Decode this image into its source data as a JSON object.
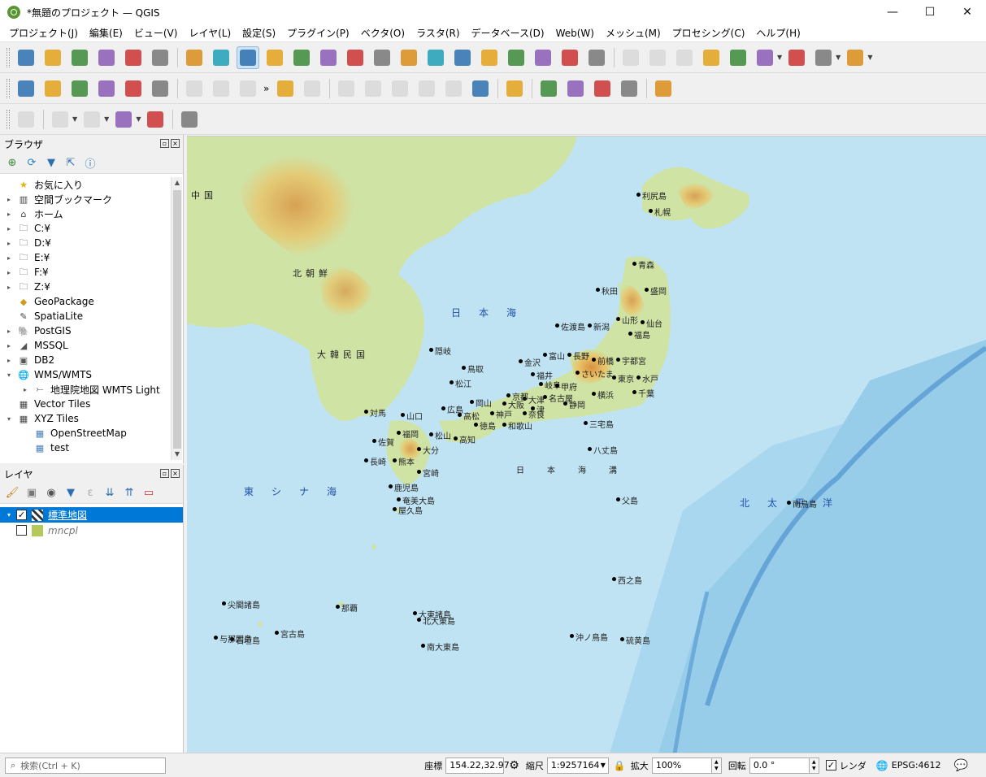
{
  "window": {
    "title": "*無題のプロジェクト — QGIS",
    "minimize": "—",
    "maximize": "☐",
    "close": "✕"
  },
  "menu": [
    "プロジェクト(J)",
    "編集(E)",
    "ビュー(V)",
    "レイヤ(L)",
    "設定(S)",
    "プラグイン(P)",
    "ベクタ(O)",
    "ラスタ(R)",
    "データベース(D)",
    "Web(W)",
    "メッシュ(M)",
    "プロセシング(C)",
    "ヘルプ(H)"
  ],
  "toolbar_icons": {
    "row1": [
      "new-project-icon",
      "open-project-icon",
      "save-project-icon",
      "print-layout-icon",
      "layout-manager-icon",
      "style-manager-icon",
      "pan-icon",
      "pan-to-selection-icon",
      "zoom-in-icon",
      "zoom-out-icon",
      "zoom-full-icon",
      "zoom-selection-icon",
      "zoom-layer-icon",
      "zoom-native-icon",
      "zoom-last-icon",
      "zoom-next-icon",
      "new-map-view-icon",
      "new-3d-view-icon",
      "bookmark-new-icon",
      "bookmarks-icon",
      "temporal-icon",
      "refresh-icon",
      "identify-icon",
      "attribute-table-icon",
      "field-calculator-icon",
      "processing-toolbox-icon",
      "statistics-icon",
      "measure-icon",
      "map-tips-icon",
      "locate-icon",
      "text-annotation-icon"
    ],
    "row2": [
      "data-source-manager-icon",
      "new-geopackage-icon",
      "new-shapefile-icon",
      "new-spatialite-icon",
      "new-virtual-layer-icon",
      "new-memory-layer-icon",
      "edits-icon",
      "toggle-editing-icon",
      "save-edits-icon",
      "digitize-icon",
      "vertex-tool-icon",
      "label-icon",
      "label-pin-icon",
      "label-show-icon",
      "label-move-icon",
      "label-rotate-icon",
      "label-change-icon",
      "metasearch-icon",
      "python-icon",
      "qms-icon",
      "osm-icon",
      "wkt-icon",
      "help-icon"
    ],
    "row3": [
      "select-feature-icon",
      "select-by-area-icon",
      "select-value-icon",
      "deselect-icon",
      "select-location-icon",
      "gis-plugin-icon"
    ]
  },
  "browser": {
    "title": "ブラウザ",
    "items": [
      {
        "label": "お気に入り",
        "icon": "favorites-icon",
        "arrow": ""
      },
      {
        "label": "空間ブックマーク",
        "icon": "bookmark-icon",
        "arrow": "▸"
      },
      {
        "label": "ホーム",
        "icon": "home-icon",
        "arrow": "▸"
      },
      {
        "label": "C:¥",
        "icon": "folder-icon",
        "arrow": "▸"
      },
      {
        "label": "D:¥",
        "icon": "folder-icon",
        "arrow": "▸"
      },
      {
        "label": "E:¥",
        "icon": "folder-icon",
        "arrow": "▸"
      },
      {
        "label": "F:¥",
        "icon": "folder-icon",
        "arrow": "▸"
      },
      {
        "label": "Z:¥",
        "icon": "folder-icon",
        "arrow": "▸"
      },
      {
        "label": "GeoPackage",
        "icon": "geopackage-icon",
        "arrow": ""
      },
      {
        "label": "SpatiaLite",
        "icon": "spatialite-icon",
        "arrow": ""
      },
      {
        "label": "PostGIS",
        "icon": "postgis-icon",
        "arrow": "▸"
      },
      {
        "label": "MSSQL",
        "icon": "mssql-icon",
        "arrow": "▸"
      },
      {
        "label": "DB2",
        "icon": "db2-icon",
        "arrow": "▸"
      },
      {
        "label": "WMS/WMTS",
        "icon": "wms-icon",
        "arrow": "▾"
      },
      {
        "label": "地理院地図 WMTS Light",
        "icon": "wmts-layer-icon",
        "arrow": "▸",
        "indent": 1
      },
      {
        "label": "Vector Tiles",
        "icon": "vector-tiles-icon",
        "arrow": ""
      },
      {
        "label": "XYZ Tiles",
        "icon": "xyz-tiles-icon",
        "arrow": "▾"
      },
      {
        "label": "OpenStreetMap",
        "icon": "xyz-tile-layer-icon",
        "arrow": "",
        "indent": 1
      },
      {
        "label": "test",
        "icon": "xyz-tile-layer-icon",
        "arrow": "",
        "indent": 1
      }
    ]
  },
  "layers": {
    "title": "レイヤ",
    "items": [
      {
        "label": "標準地図",
        "checked": true,
        "selected": true
      },
      {
        "label": "mncpl",
        "checked": false,
        "selected": false
      }
    ]
  },
  "map": {
    "seas": [
      {
        "label": "日本海"
      },
      {
        "label": "東シナ海"
      },
      {
        "label": "北太平洋"
      },
      {
        "label": "日本海溝"
      }
    ],
    "regions": [
      {
        "label": "北朝鮮"
      },
      {
        "label": "大韓民国"
      },
      {
        "label": "中国"
      }
    ],
    "cities": [
      {
        "label": "札幌"
      },
      {
        "label": "青森"
      },
      {
        "label": "秋田"
      },
      {
        "label": "盛岡"
      },
      {
        "label": "山形"
      },
      {
        "label": "仙台"
      },
      {
        "label": "新潟"
      },
      {
        "label": "福島"
      },
      {
        "label": "富山"
      },
      {
        "label": "長野"
      },
      {
        "label": "前橋"
      },
      {
        "label": "宇都宮"
      },
      {
        "label": "金沢"
      },
      {
        "label": "福井"
      },
      {
        "label": "岐阜"
      },
      {
        "label": "甲府"
      },
      {
        "label": "さいたま"
      },
      {
        "label": "水戸"
      },
      {
        "label": "東京"
      },
      {
        "label": "千葉"
      },
      {
        "label": "横浜"
      },
      {
        "label": "静岡"
      },
      {
        "label": "名古屋"
      },
      {
        "label": "津"
      },
      {
        "label": "大津"
      },
      {
        "label": "京都"
      },
      {
        "label": "奈良"
      },
      {
        "label": "大阪"
      },
      {
        "label": "神戸"
      },
      {
        "label": "和歌山"
      },
      {
        "label": "鳥取"
      },
      {
        "label": "松江"
      },
      {
        "label": "岡山"
      },
      {
        "label": "広島"
      },
      {
        "label": "山口"
      },
      {
        "label": "高松"
      },
      {
        "label": "徳島"
      },
      {
        "label": "松山"
      },
      {
        "label": "高知"
      },
      {
        "label": "福岡"
      },
      {
        "label": "佐賀"
      },
      {
        "label": "長崎"
      },
      {
        "label": "熊本"
      },
      {
        "label": "大分"
      },
      {
        "label": "宮崎"
      },
      {
        "label": "鹿児島"
      },
      {
        "label": "那覇"
      },
      {
        "label": "隠岐"
      },
      {
        "label": "佐渡島"
      },
      {
        "label": "八丈島"
      },
      {
        "label": "三宅島"
      },
      {
        "label": "父島"
      },
      {
        "label": "南鳥島"
      },
      {
        "label": "沖ノ鳥島"
      },
      {
        "label": "西之島"
      },
      {
        "label": "硫黄島"
      },
      {
        "label": "宮古島"
      },
      {
        "label": "石垣島"
      },
      {
        "label": "与那国島"
      },
      {
        "label": "尖閣諸島"
      },
      {
        "label": "大東諸島"
      },
      {
        "label": "北大東島"
      },
      {
        "label": "南大東島"
      },
      {
        "label": "奄美大島"
      },
      {
        "label": "屋久島"
      },
      {
        "label": "対馬"
      },
      {
        "label": "利尻島"
      }
    ]
  },
  "statusbar": {
    "locator_placeholder": "検索(Ctrl + K)",
    "coord_label": "座標",
    "coord_value": "154.22,32.97",
    "scale_label": "縮尺",
    "scale_value": "1:9257164",
    "magnifier_label": "拡大",
    "magnifier_value": "100%",
    "rotation_label": "回転",
    "rotation_value": "0.0 °",
    "render_label": "レンダ",
    "crs_value": "EPSG:4612"
  }
}
